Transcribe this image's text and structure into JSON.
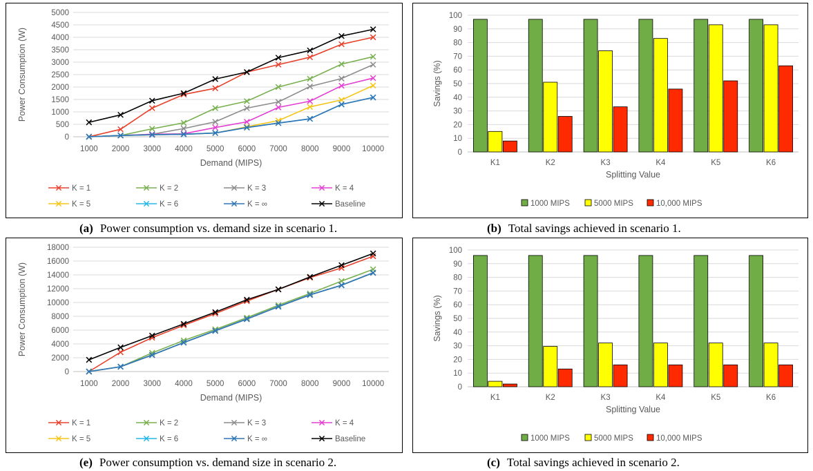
{
  "panels": [
    {
      "caption_tag": "(a)",
      "caption_text": "Power consumption vs. demand size in scenario 1."
    },
    {
      "caption_tag": "(b)",
      "caption_text": "Total savings achieved in scenario 1."
    },
    {
      "caption_tag": "(e)",
      "caption_text": "Power consumption vs. demand size in scenario 2."
    },
    {
      "caption_tag": "(c)",
      "caption_text": "Total savings achieved in scenario 2."
    }
  ],
  "chart_data": [
    {
      "type": "line",
      "xlabel": "Demand (MIPS)",
      "ylabel": "Power Consumption (W)",
      "x": [
        1000,
        2000,
        3000,
        4000,
        5000,
        6000,
        7000,
        8000,
        9000,
        10000
      ],
      "ylim": [
        0,
        5000
      ],
      "yticks": [
        0,
        500,
        1000,
        1500,
        2000,
        2500,
        3000,
        3500,
        4000,
        4500,
        5000
      ],
      "grid": true,
      "legend_position": "bottom",
      "series": [
        {
          "name": "K = 1",
          "color": "#e8412b",
          "values": [
            0,
            300,
            1150,
            1700,
            1950,
            2600,
            2900,
            3200,
            3720,
            4000
          ]
        },
        {
          "name": "K = 2",
          "color": "#78b04f",
          "values": [
            0,
            50,
            320,
            560,
            1150,
            1430,
            2000,
            2330,
            2920,
            3220
          ]
        },
        {
          "name": "K = 3",
          "color": "#8c8c8c",
          "values": [
            0,
            50,
            100,
            330,
            600,
            1150,
            1400,
            2020,
            2340,
            2900
          ]
        },
        {
          "name": "K = 4",
          "color": "#e33fd3",
          "values": [
            0,
            50,
            100,
            120,
            370,
            600,
            1180,
            1430,
            2050,
            2360
          ]
        },
        {
          "name": "K = 5",
          "color": "#f5c518",
          "values": [
            0,
            50,
            80,
            100,
            150,
            400,
            650,
            1200,
            1480,
            2060
          ]
        },
        {
          "name": "K = 6",
          "color": "#25b5e8",
          "values": [
            0,
            50,
            80,
            100,
            150,
            370,
            550,
            720,
            1300,
            1580
          ]
        },
        {
          "name": "K = ∞",
          "color": "#2e75b6",
          "values": [
            0,
            50,
            80,
            100,
            150,
            370,
            550,
            720,
            1300,
            1580
          ]
        },
        {
          "name": "Baseline",
          "color": "#000000",
          "values": [
            580,
            880,
            1450,
            1750,
            2320,
            2600,
            3180,
            3470,
            4050,
            4320
          ]
        }
      ]
    },
    {
      "type": "bar",
      "xlabel": "Splitting Value",
      "ylabel": "Savings (%)",
      "categories": [
        "K1",
        "K2",
        "K3",
        "K4",
        "K5",
        "K6"
      ],
      "ylim": [
        0,
        100
      ],
      "yticks": [
        0,
        10,
        20,
        30,
        40,
        50,
        60,
        70,
        80,
        90,
        100
      ],
      "grid": true,
      "legend_position": "bottom",
      "series": [
        {
          "name": "1000 MIPS",
          "color": "#70ad47",
          "values": [
            97,
            97,
            97,
            97,
            97,
            97
          ]
        },
        {
          "name": "5000 MIPS",
          "color": "#ffff00",
          "values": [
            15,
            51,
            74,
            83,
            93,
            93
          ]
        },
        {
          "name": "10,000 MIPS",
          "color": "#ff2a00",
          "values": [
            8,
            26,
            33,
            46,
            52,
            63
          ]
        }
      ]
    },
    {
      "type": "line",
      "xlabel": "Demand (MIPS)",
      "ylabel": "Power Consumption (W)",
      "x": [
        1000,
        2000,
        3000,
        4000,
        5000,
        6000,
        7000,
        8000,
        9000,
        10000
      ],
      "ylim": [
        0,
        18000
      ],
      "yticks": [
        0,
        2000,
        4000,
        6000,
        8000,
        10000,
        12000,
        14000,
        16000,
        18000
      ],
      "grid": true,
      "legend_position": "bottom",
      "series": [
        {
          "name": "K = 1",
          "color": "#e8412b",
          "values": [
            0,
            2800,
            4900,
            6700,
            8400,
            10200,
            11900,
            13600,
            15000,
            16700
          ]
        },
        {
          "name": "K = 2",
          "color": "#78b04f",
          "values": [
            0,
            700,
            2700,
            4500,
            6100,
            7800,
            9600,
            11300,
            13100,
            14800
          ]
        },
        {
          "name": "K = 3",
          "color": "#8c8c8c",
          "values": [
            0,
            700,
            2400,
            4200,
            5900,
            7600,
            9400,
            11100,
            12500,
            14300
          ]
        },
        {
          "name": "K = 4",
          "color": "#e33fd3",
          "values": [
            0,
            700,
            2400,
            4200,
            5900,
            7600,
            9400,
            11100,
            12500,
            14300
          ]
        },
        {
          "name": "K = 5",
          "color": "#f5c518",
          "values": [
            0,
            700,
            2400,
            4200,
            5900,
            7600,
            9400,
            11100,
            12500,
            14300
          ]
        },
        {
          "name": "K = 6",
          "color": "#25b5e8",
          "values": [
            0,
            700,
            2400,
            4200,
            5900,
            7600,
            9400,
            11100,
            12500,
            14300
          ]
        },
        {
          "name": "K = ∞",
          "color": "#2e75b6",
          "values": [
            0,
            700,
            2400,
            4200,
            5900,
            7600,
            9400,
            11100,
            12500,
            14300
          ]
        },
        {
          "name": "Baseline",
          "color": "#000000",
          "values": [
            1700,
            3500,
            5200,
            6900,
            8600,
            10400,
            11900,
            13700,
            15400,
            17100
          ]
        }
      ]
    },
    {
      "type": "bar",
      "xlabel": "Splitting Value",
      "ylabel": "Savings (%)",
      "categories": [
        "K1",
        "K2",
        "K3",
        "K4",
        "K5",
        "K6"
      ],
      "ylim": [
        0,
        100
      ],
      "yticks": [
        0,
        10,
        20,
        30,
        40,
        50,
        60,
        70,
        80,
        90,
        100
      ],
      "grid": true,
      "legend_position": "bottom",
      "series": [
        {
          "name": "1000 MIPS",
          "color": "#70ad47",
          "values": [
            96,
            96,
            96,
            96,
            96,
            96
          ]
        },
        {
          "name": "5000 MIPS",
          "color": "#ffff00",
          "values": [
            4,
            29.5,
            32,
            32,
            32,
            32
          ]
        },
        {
          "name": "10,000 MIPS",
          "color": "#ff2a00",
          "values": [
            2,
            13,
            16,
            16,
            16,
            16
          ]
        }
      ]
    }
  ]
}
